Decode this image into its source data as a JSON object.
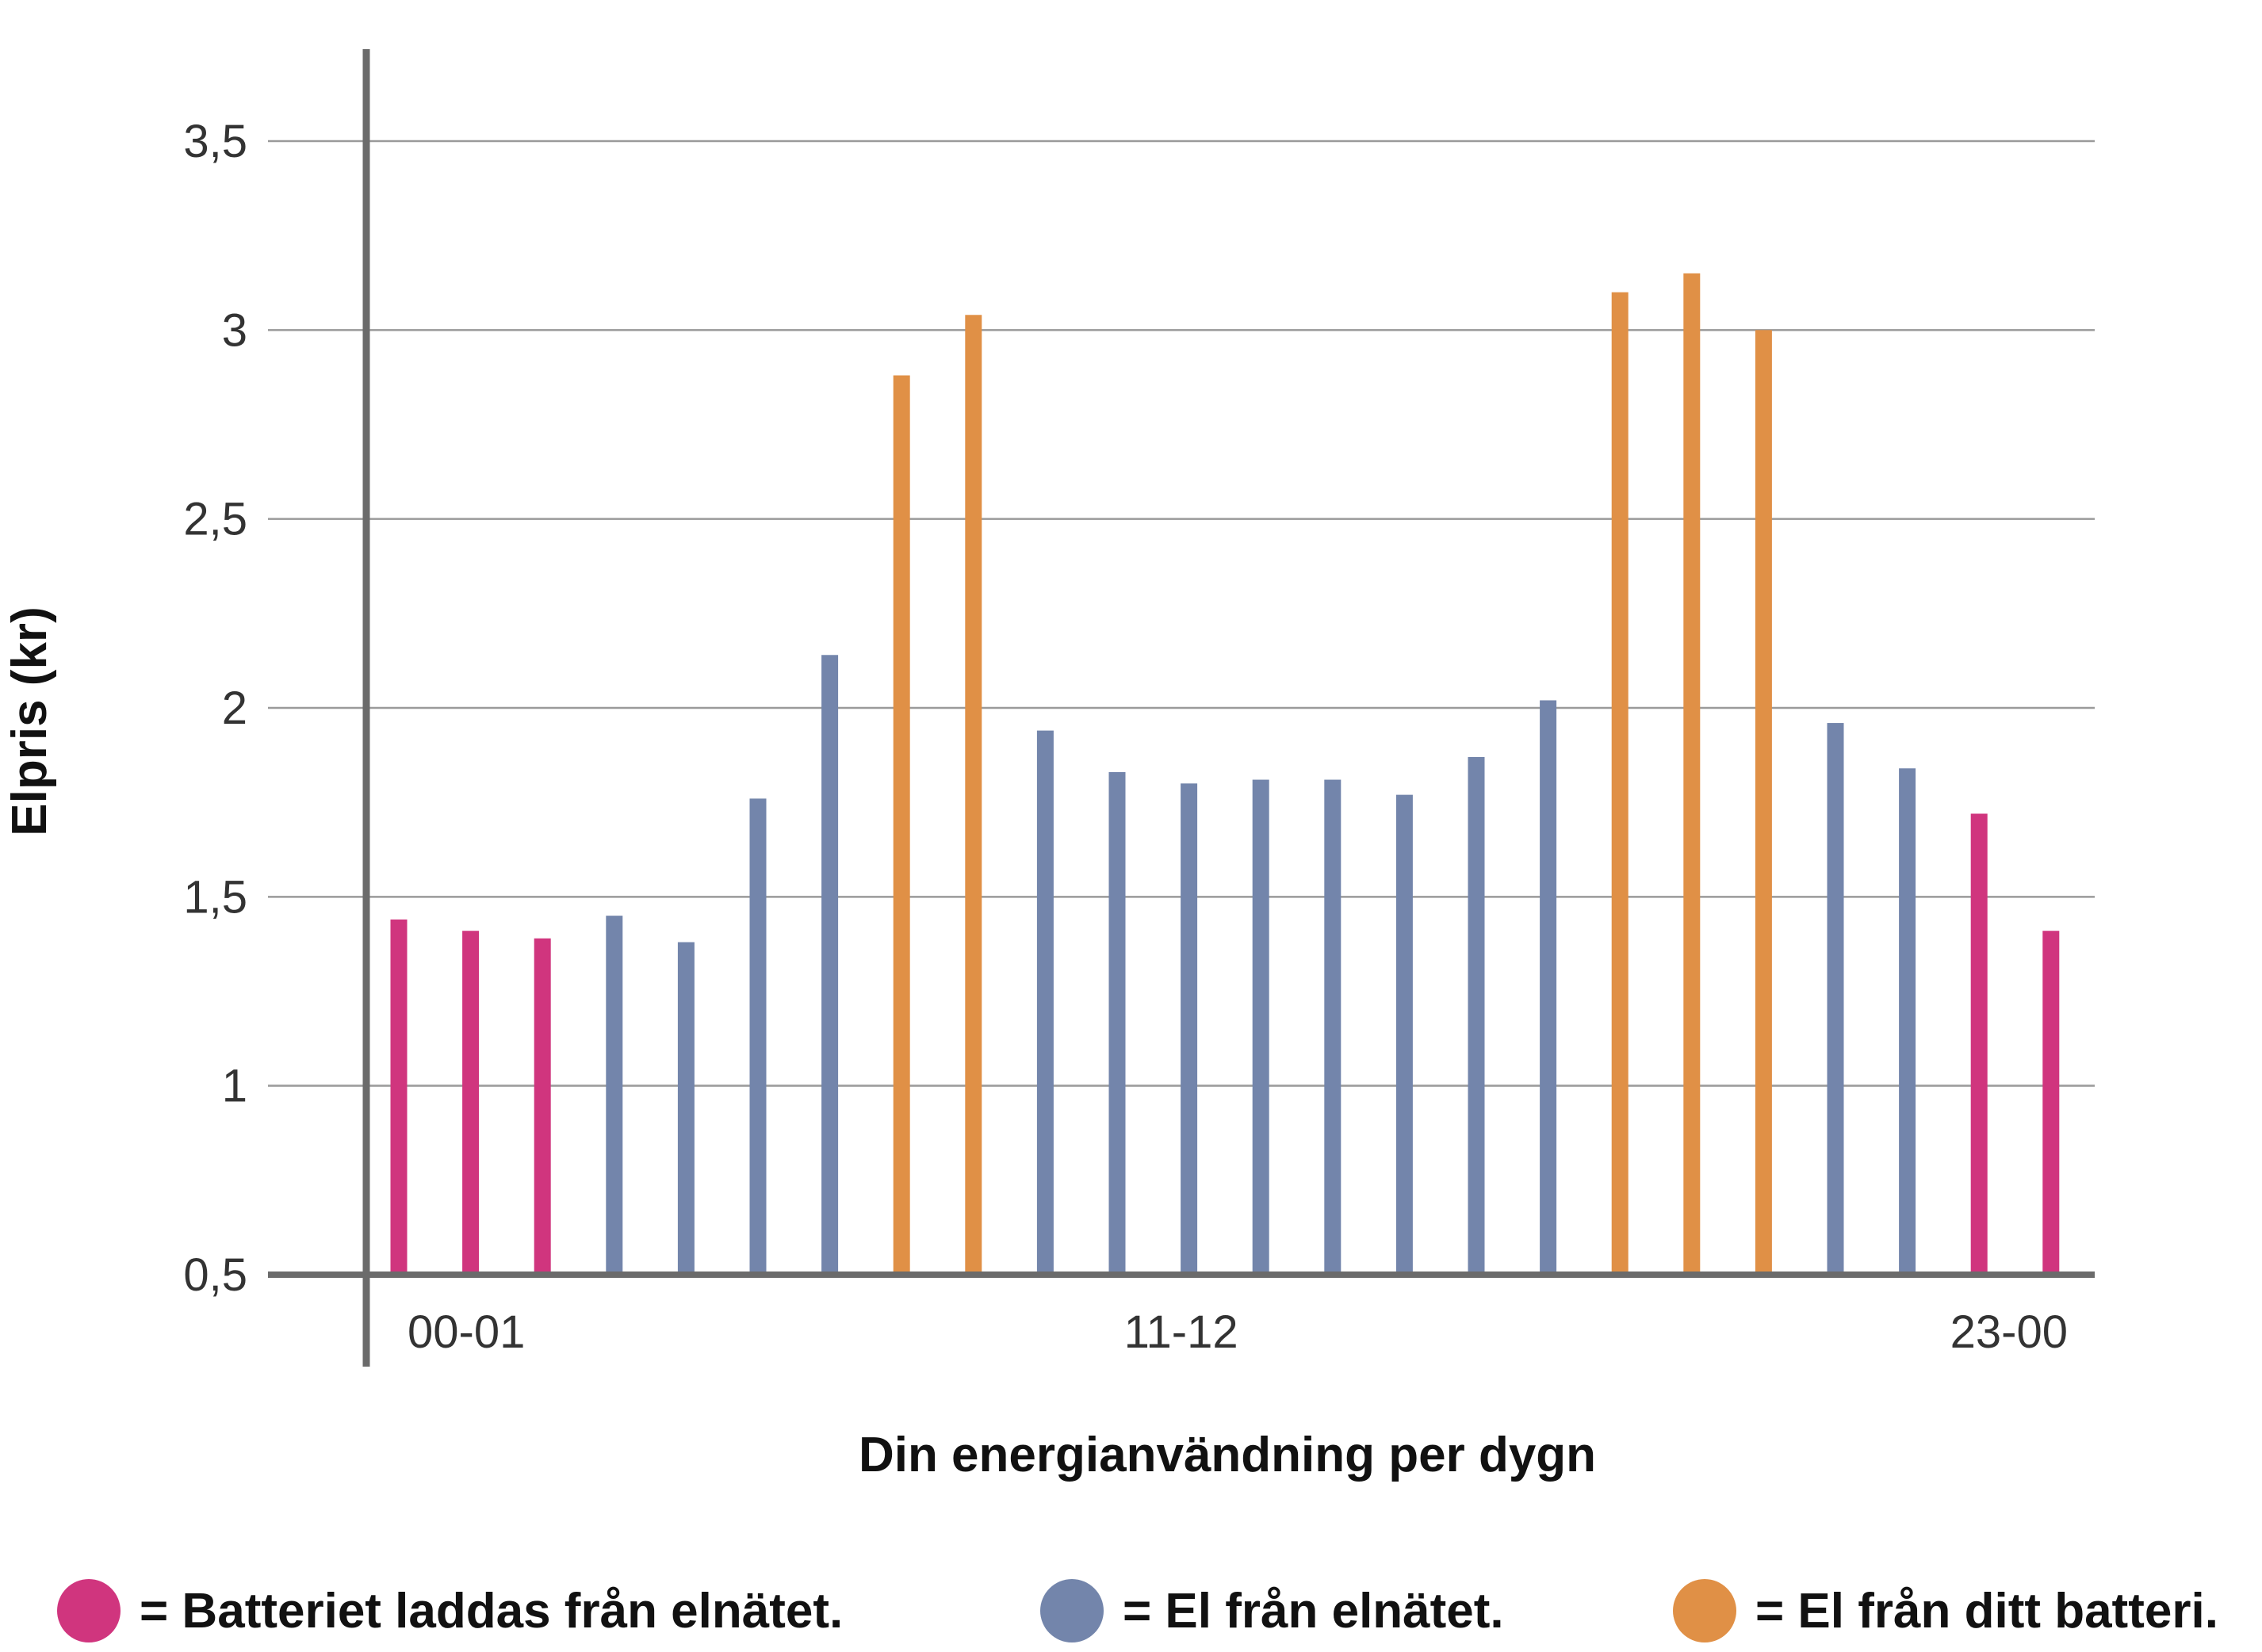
{
  "chart_data": {
    "type": "bar",
    "title": "",
    "xlabel": "Din energianvändning per dygn",
    "ylabel": "Elpris (kr)",
    "ylim": [
      0.5,
      3.5
    ],
    "yticks": [
      0.5,
      1,
      1.5,
      2,
      2.5,
      3,
      3.5
    ],
    "ytick_labels": [
      "0,5",
      "1",
      "1,5",
      "2",
      "2,5",
      "3",
      "3,5"
    ],
    "grid": true,
    "xtick_labels": [
      {
        "index": 0,
        "label": "00-01"
      },
      {
        "index": 11,
        "label": "11-12"
      },
      {
        "index": 23,
        "label": "23-00"
      }
    ],
    "values": [
      1.44,
      1.41,
      1.39,
      1.45,
      1.38,
      1.76,
      2.14,
      2.88,
      3.04,
      1.94,
      1.83,
      1.8,
      1.81,
      1.81,
      1.77,
      1.87,
      2.02,
      3.1,
      3.15,
      3.0,
      1.96,
      1.84,
      1.72,
      1.41
    ],
    "bar_groups": [
      "charge",
      "charge",
      "charge",
      "grid",
      "grid",
      "grid",
      "grid",
      "battery",
      "battery",
      "grid",
      "grid",
      "grid",
      "grid",
      "grid",
      "grid",
      "grid",
      "grid",
      "battery",
      "battery",
      "battery",
      "grid",
      "grid",
      "charge",
      "charge"
    ],
    "colors": {
      "charge": "#d0357e",
      "grid": "#7385ab",
      "battery": "#e09046"
    },
    "axis_color": "#6b6b6b",
    "grid_color": "#9a9a9a",
    "legend": [
      {
        "group": "charge",
        "label": "= Batteriet laddas från elnätet."
      },
      {
        "group": "grid",
        "label": "= El från elnätet."
      },
      {
        "group": "battery",
        "label": "= El från ditt batteri."
      }
    ]
  }
}
